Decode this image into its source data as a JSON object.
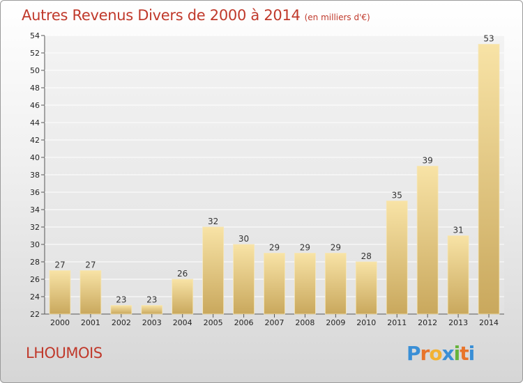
{
  "header": {
    "title": "Autres Revenus Divers de 2000 à 2014",
    "unit": "(en milliers d'€)"
  },
  "footer": {
    "commune": "LHOUMOIS",
    "logo_letters": [
      "P",
      "r",
      "o",
      "x",
      "i",
      "t",
      "i"
    ],
    "logo_colors": [
      "#3a8fd6",
      "#e8742a",
      "#f2b233",
      "#3a8fd6",
      "#66b33c",
      "#e8742a",
      "#3a8fd6"
    ]
  },
  "colors": {
    "title": "#c0392b",
    "bar_light": "#f8e3a6",
    "bar_dark": "#c9a85d",
    "grid": "#ffffff"
  },
  "chart_data": {
    "type": "bar",
    "title": "Autres Revenus Divers de 2000 à 2014",
    "subtitle": "(en milliers d'€)",
    "xlabel": "",
    "ylabel": "",
    "categories": [
      "2000",
      "2001",
      "2002",
      "2003",
      "2004",
      "2005",
      "2006",
      "2007",
      "2008",
      "2009",
      "2010",
      "2011",
      "2012",
      "2013",
      "2014"
    ],
    "values": [
      27,
      27,
      23,
      23,
      26,
      32,
      30,
      29,
      29,
      29,
      28,
      35,
      39,
      31,
      53
    ],
    "ylim": [
      22,
      54
    ],
    "yticks": [
      22,
      24,
      26,
      28,
      30,
      32,
      34,
      36,
      38,
      40,
      42,
      44,
      46,
      48,
      50,
      52,
      54
    ],
    "grid": true,
    "data_labels": true
  }
}
